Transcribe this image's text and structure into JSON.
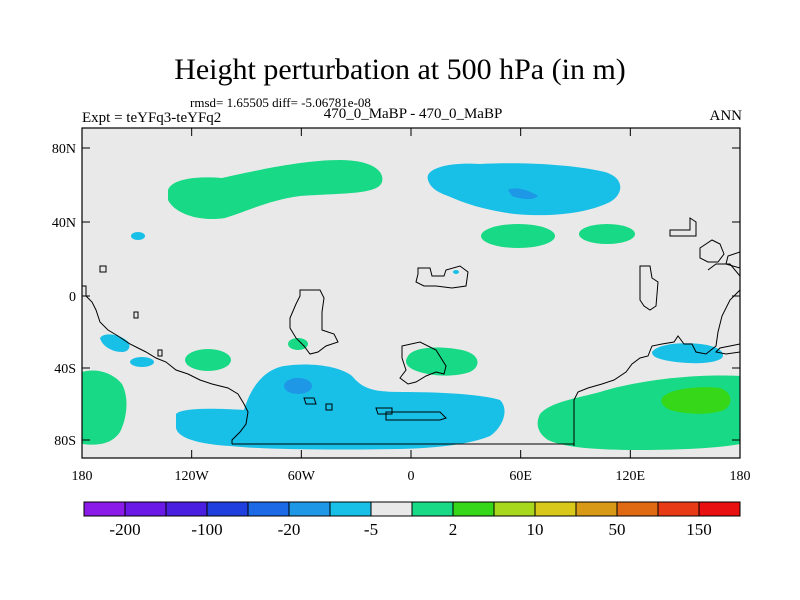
{
  "title": "Height perturbation at 500 hPa (in m)",
  "stats": "rmsd= 1.65505 diff= -5.06781e-08",
  "left_label": "Expt = teYFq3-teYFq2",
  "center_label": "470_0_MaBP - 470_0_MaBP",
  "right_label": "ANN",
  "lat_ticks": [
    "80N",
    "40N",
    "0",
    "40S",
    "80S"
  ],
  "lon_ticks": [
    "180",
    "120W",
    "60W",
    "0",
    "60E",
    "120E",
    "180"
  ],
  "colorbar": {
    "colors": [
      "#8a1be8",
      "#6a19e6",
      "#4a1fe0",
      "#1f3fde",
      "#1d6ae6",
      "#1d97e6",
      "#18bfe6",
      "#e9e9e9",
      "#18d985",
      "#36d618",
      "#a8d81e",
      "#d8c81a",
      "#d89a16",
      "#e06a14",
      "#e83a14",
      "#e81010"
    ],
    "labels": [
      "-200",
      "-100",
      "-20",
      "-5",
      "2",
      "10",
      "50",
      "150"
    ]
  },
  "colors": {
    "background": "#e9e9e9",
    "neg_light": "#18bfe6",
    "neg_mid": "#1d97e6",
    "pos_light": "#18d985",
    "pos_mid": "#36d618"
  }
}
